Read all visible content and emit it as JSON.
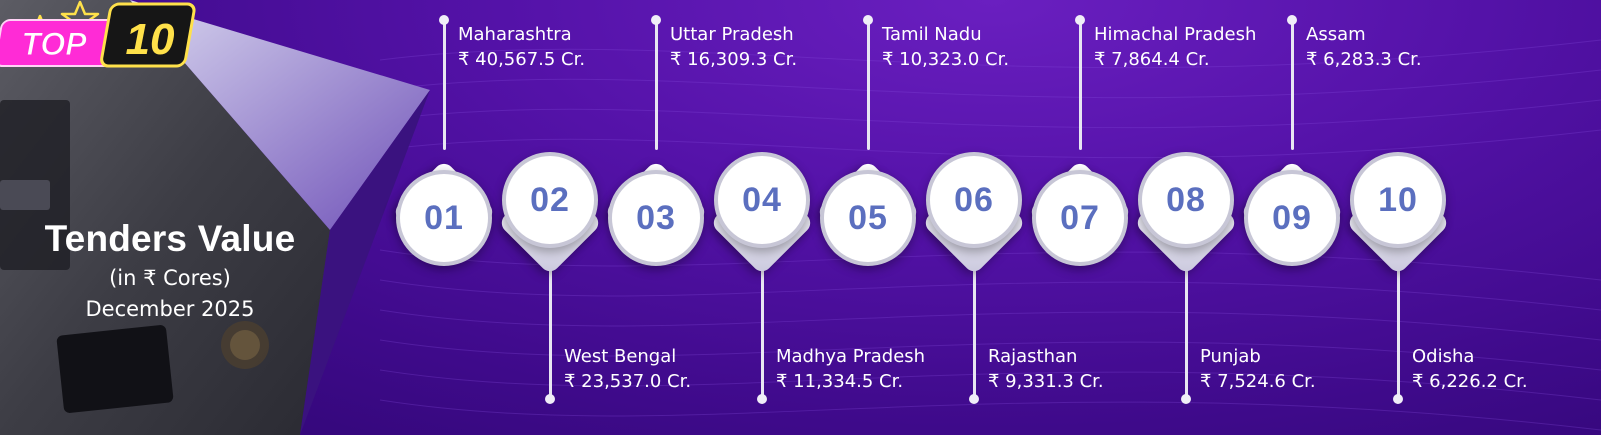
{
  "header": {
    "badge_top": "TOP",
    "badge_num": "10",
    "title": "Tenders Value",
    "subtitle": "(in ₹ Cores)",
    "period": "December 2025"
  },
  "colors": {
    "background": "#4f10a3",
    "badge_pink": "#ff2bd6",
    "badge_yellow": "#ffe14a",
    "number_blue": "#5b6fbf"
  },
  "items": [
    {
      "rank": "01",
      "state": "Maharashtra",
      "value": "₹ 40,567.5 Cr."
    },
    {
      "rank": "02",
      "state": "West Bengal",
      "value": "₹ 23,537.0 Cr."
    },
    {
      "rank": "03",
      "state": "Uttar Pradesh",
      "value": "₹ 16,309.3 Cr."
    },
    {
      "rank": "04",
      "state": "Madhya Pradesh",
      "value": "₹ 11,334.5 Cr."
    },
    {
      "rank": "05",
      "state": "Tamil Nadu",
      "value": "₹ 10,323.0 Cr."
    },
    {
      "rank": "06",
      "state": "Rajasthan",
      "value": "₹ 9,331.3 Cr."
    },
    {
      "rank": "07",
      "state": "Himachal Pradesh",
      "value": "₹ 7,864.4 Cr."
    },
    {
      "rank": "08",
      "state": "Punjab",
      "value": "₹ 7,524.6 Cr."
    },
    {
      "rank": "09",
      "state": "Assam",
      "value": "₹ 6,283.3 Cr."
    },
    {
      "rank": "10",
      "state": "Odisha",
      "value": "₹ 6,226.2 Cr."
    }
  ]
}
